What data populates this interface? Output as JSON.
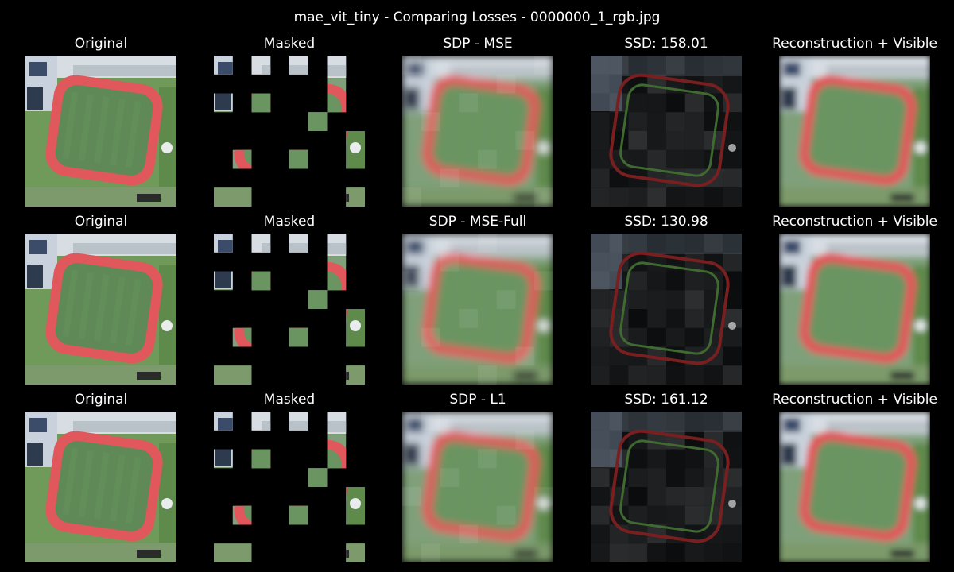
{
  "figure_title": "mae_vit_tiny - Comparing Losses - 0000000_1_rgb.jpg",
  "rows": [
    {
      "titles": [
        "Original",
        "Masked",
        "SDP - MSE",
        "SSD: 158.01",
        "Reconstruction + Visible"
      ]
    },
    {
      "titles": [
        "Original",
        "Masked",
        "SDP - MSE-Full",
        "SSD: 130.98",
        "Reconstruction + Visible"
      ]
    },
    {
      "titles": [
        "Original",
        "Masked",
        "SDP - L1",
        "SSD: 161.12",
        "Reconstruction + Visible"
      ]
    }
  ],
  "colors": {
    "background": "#000000",
    "field": "#5f8a58",
    "track": "#e0585c",
    "grass": "#6f9a5a",
    "roof": "#c9d2dc"
  }
}
